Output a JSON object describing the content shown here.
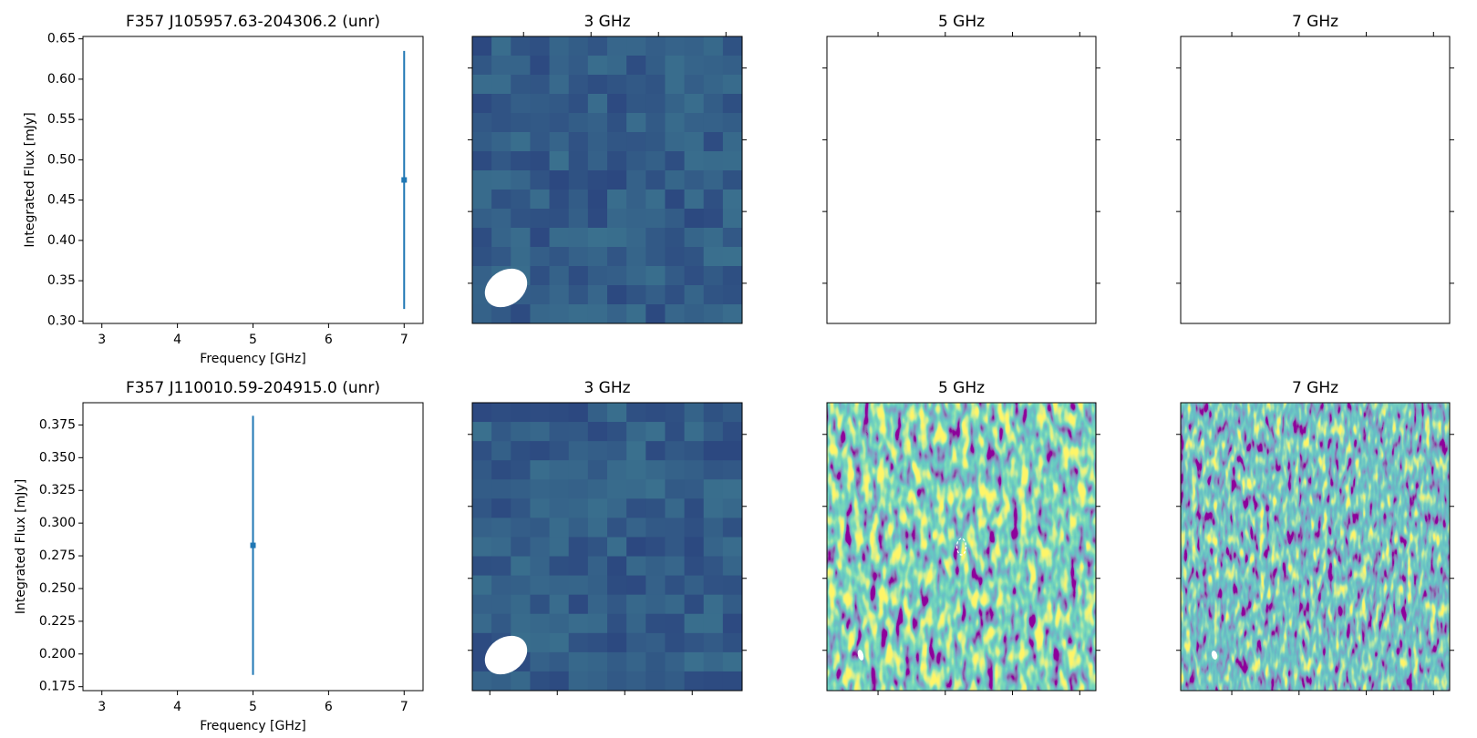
{
  "chart_data": [
    {
      "type": "errorbar",
      "title": "F357 J105957.63-204306.2 (unr)",
      "xlabel": "Frequency [GHz]",
      "ylabel": "Integrated Flux [mJy]",
      "x": [
        7
      ],
      "values": [
        0.475
      ],
      "errors": [
        0.16
      ],
      "color": "#1f77b4",
      "xlim": [
        2.75,
        7.25
      ],
      "xticks": [
        3,
        4,
        5,
        6,
        7
      ],
      "ylim": [
        0.297,
        0.653
      ],
      "yticks": [
        {
          "value": 0.3,
          "label": "0.30"
        },
        0.35,
        {
          "value": 0.4,
          "label": "0.40"
        },
        0.45,
        {
          "value": 0.5,
          "label": "0.50"
        },
        0.55,
        {
          "value": 0.6,
          "label": "0.60"
        },
        0.65
      ]
    },
    {
      "type": "image",
      "title": "3 GHz",
      "cmap": "viridis"
    },
    {
      "type": "image",
      "title": "5 GHz"
    },
    {
      "type": "image",
      "title": "7 GHz"
    },
    {
      "type": "errorbar",
      "title": "F357 J110010.59-204915.0 (unr)",
      "xlabel": "Frequency [GHz]",
      "ylabel": "Integrated Flux [mJy]",
      "x": [
        5
      ],
      "values": [
        0.283
      ],
      "errors": [
        0.099
      ],
      "color": "#1f77b4",
      "xlim": [
        2.75,
        7.25
      ],
      "xticks": [
        3,
        4,
        5,
        6,
        7
      ],
      "ylim": [
        0.172,
        0.392
      ],
      "yticks": [
        0.175,
        {
          "value": 0.2,
          "label": "0.200"
        },
        0.225,
        {
          "value": 0.25,
          "label": "0.250"
        },
        0.275,
        {
          "value": 0.3,
          "label": "0.300"
        },
        0.325,
        {
          "value": 0.35,
          "label": "0.350"
        },
        0.375
      ]
    },
    {
      "type": "image",
      "title": "3 GHz",
      "cmap": "viridis"
    },
    {
      "type": "image",
      "title": "5 GHz",
      "cmap": "viridis"
    },
    {
      "type": "image",
      "title": "7 GHz",
      "cmap": "viridis"
    }
  ]
}
